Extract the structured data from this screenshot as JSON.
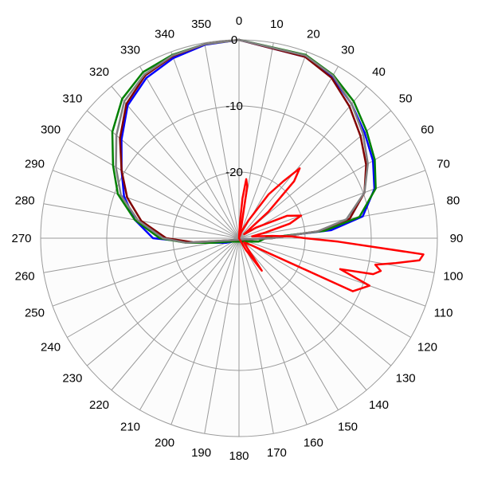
{
  "chart_data": {
    "type": "polar-line",
    "angle_unit": "degrees",
    "angle_zero": "top",
    "angle_direction": "clockwise",
    "angle_ticks": [
      0,
      10,
      20,
      30,
      40,
      50,
      60,
      70,
      80,
      90,
      100,
      110,
      120,
      130,
      140,
      150,
      160,
      170,
      180,
      190,
      200,
      210,
      220,
      230,
      240,
      250,
      260,
      270,
      280,
      290,
      300,
      310,
      320,
      330,
      340,
      350
    ],
    "angle_tick_labels": [
      "0",
      "10",
      "20",
      "30",
      "40",
      "50",
      "60",
      "70",
      "80",
      "90",
      "100",
      "110",
      "120",
      "130",
      "140",
      "150",
      "160",
      "170",
      "180",
      "190",
      "200",
      "210",
      "220",
      "230",
      "240",
      "250",
      "260",
      "270",
      "280",
      "290",
      "300",
      "310",
      "320",
      "330",
      "340",
      "350"
    ],
    "radial_range_db": [
      -30,
      0
    ],
    "radial_ticks": [
      0,
      -10,
      -20
    ],
    "radial_tick_labels": [
      "0",
      "-10",
      "-20"
    ],
    "grid": true,
    "series": [
      {
        "color": "#0000ff",
        "points": [
          [
            0,
            0
          ],
          [
            20,
            -0.8
          ],
          [
            30,
            -1.8
          ],
          [
            40,
            -3.5
          ],
          [
            50,
            -5.2
          ],
          [
            60,
            -6.6
          ],
          [
            70,
            -8.2
          ],
          [
            80,
            -11
          ],
          [
            85,
            -16
          ],
          [
            90,
            -26
          ],
          [
            95,
            -28
          ],
          [
            100,
            -29
          ],
          [
            250,
            -28
          ],
          [
            260,
            -26
          ],
          [
            265,
            -23
          ],
          [
            270,
            -17
          ],
          [
            280,
            -14
          ],
          [
            290,
            -11.5
          ],
          [
            300,
            -9.5
          ],
          [
            310,
            -6.8
          ],
          [
            320,
            -3.8
          ],
          [
            330,
            -2
          ],
          [
            340,
            -1
          ],
          [
            350,
            -0.3
          ],
          [
            360,
            0
          ]
        ]
      },
      {
        "color": "#008000",
        "points": [
          [
            0,
            0
          ],
          [
            20,
            -0.5
          ],
          [
            30,
            -1.5
          ],
          [
            40,
            -3
          ],
          [
            50,
            -4.8
          ],
          [
            60,
            -6.3
          ],
          [
            70,
            -8
          ],
          [
            80,
            -11.5
          ],
          [
            85,
            -17
          ],
          [
            90,
            -26
          ],
          [
            100,
            -27
          ],
          [
            110,
            -28.5
          ],
          [
            250,
            -28.5
          ],
          [
            260,
            -26
          ],
          [
            265,
            -22
          ],
          [
            270,
            -18
          ],
          [
            280,
            -14
          ],
          [
            290,
            -10.5
          ],
          [
            300,
            -8
          ],
          [
            310,
            -5
          ],
          [
            320,
            -2.5
          ],
          [
            330,
            -1
          ],
          [
            340,
            -0.5
          ],
          [
            350,
            -0.2
          ],
          [
            360,
            0
          ]
        ]
      },
      {
        "color": "#800000",
        "points": [
          [
            0,
            0
          ],
          [
            20,
            -0.8
          ],
          [
            30,
            -2
          ],
          [
            40,
            -4
          ],
          [
            50,
            -6
          ],
          [
            60,
            -7.8
          ],
          [
            70,
            -9.8
          ],
          [
            80,
            -13
          ],
          [
            85,
            -18
          ],
          [
            90,
            -25
          ],
          [
            95,
            -28
          ],
          [
            260,
            -28
          ],
          [
            265,
            -23
          ],
          [
            270,
            -19
          ],
          [
            280,
            -15
          ],
          [
            290,
            -12
          ],
          [
            300,
            -9.5
          ],
          [
            310,
            -6.5
          ],
          [
            320,
            -3.5
          ],
          [
            330,
            -1.6
          ],
          [
            340,
            -0.7
          ],
          [
            350,
            -0.2
          ],
          [
            360,
            0
          ]
        ]
      },
      {
        "color": "#808080",
        "points": [
          [
            0,
            0
          ],
          [
            20,
            -0.6
          ],
          [
            30,
            -1.6
          ],
          [
            40,
            -3.5
          ],
          [
            50,
            -5.5
          ],
          [
            60,
            -7.5
          ],
          [
            70,
            -9.8
          ],
          [
            80,
            -13.5
          ],
          [
            85,
            -18
          ],
          [
            90,
            -25
          ],
          [
            100,
            -29
          ],
          [
            260,
            -28
          ],
          [
            265,
            -22
          ],
          [
            270,
            -18.5
          ],
          [
            280,
            -14.5
          ],
          [
            290,
            -11
          ],
          [
            300,
            -8.5
          ],
          [
            310,
            -5.8
          ],
          [
            320,
            -3
          ],
          [
            330,
            -1.4
          ],
          [
            340,
            -0.6
          ],
          [
            350,
            -0.2
          ],
          [
            360,
            0
          ]
        ]
      },
      {
        "color": "#ff0000",
        "points": [
          [
            0,
            -30
          ],
          [
            3,
            -28
          ],
          [
            5,
            -24
          ],
          [
            7,
            -21
          ],
          [
            9,
            -22
          ],
          [
            11,
            -28
          ],
          [
            14,
            -30
          ],
          [
            20,
            -29
          ],
          [
            28,
            -27
          ],
          [
            34,
            -22
          ],
          [
            38,
            -19
          ],
          [
            41,
            -16
          ],
          [
            44,
            -18
          ],
          [
            48,
            -24
          ],
          [
            52,
            -29
          ],
          [
            58,
            -27
          ],
          [
            65,
            -22
          ],
          [
            70,
            -20
          ],
          [
            74,
            -22
          ],
          [
            78,
            -26
          ],
          [
            82,
            -28
          ],
          [
            86,
            -25
          ],
          [
            88,
            -22
          ],
          [
            90,
            -20
          ],
          [
            92,
            -15
          ],
          [
            95,
            -2
          ],
          [
            97,
            -2.5
          ],
          [
            99,
            -6
          ],
          [
            101,
            -9
          ],
          [
            103,
            -8
          ],
          [
            105,
            -9
          ],
          [
            107,
            -14
          ],
          [
            110,
            -9
          ],
          [
            115,
            -11
          ],
          [
            120,
            -28
          ],
          [
            130,
            -29
          ],
          [
            140,
            -28
          ],
          [
            145,
            -24
          ],
          [
            150,
            -28
          ],
          [
            160,
            -30
          ],
          [
            360,
            -30
          ]
        ]
      }
    ]
  }
}
